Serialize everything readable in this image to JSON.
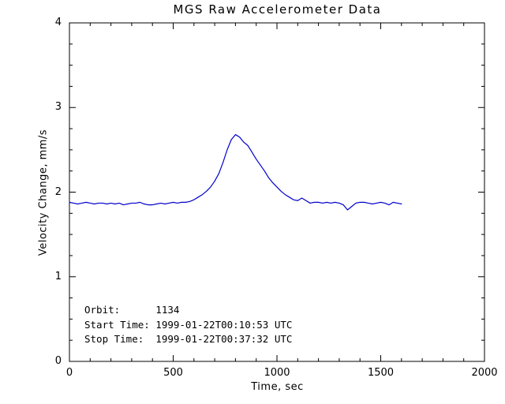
{
  "page": {
    "background": "#ffffff",
    "text_color": "#000000"
  },
  "chart_data": {
    "type": "line",
    "title": "MGS Raw Accelerometer Data",
    "xlabel": "Time, sec",
    "ylabel": "Velocity Change, mm/s",
    "xlim": [
      0,
      2000
    ],
    "ylim": [
      0,
      4
    ],
    "grid": false,
    "legend": false,
    "axis_color": "#000000",
    "line_color": "#0000CC",
    "x_ticks": [
      {
        "v": 0,
        "label": "0"
      },
      {
        "v": 500,
        "label": "500"
      },
      {
        "v": 1000,
        "label": "1000"
      },
      {
        "v": 1500,
        "label": "1500"
      },
      {
        "v": 2000,
        "label": "2000"
      }
    ],
    "y_ticks": [
      {
        "v": 0,
        "label": "0"
      },
      {
        "v": 1,
        "label": "1"
      },
      {
        "v": 2,
        "label": "2"
      },
      {
        "v": 3,
        "label": "3"
      },
      {
        "v": 4,
        "label": "4"
      }
    ],
    "x_minor_step": 100,
    "y_minor_step": 0.25,
    "series": [
      {
        "name": "velocity-change",
        "x": [
          0,
          20,
          40,
          60,
          80,
          100,
          120,
          140,
          160,
          180,
          200,
          220,
          240,
          260,
          280,
          300,
          320,
          340,
          360,
          380,
          400,
          420,
          440,
          460,
          480,
          500,
          520,
          540,
          560,
          580,
          600,
          620,
          640,
          660,
          680,
          700,
          720,
          740,
          760,
          780,
          800,
          820,
          840,
          860,
          880,
          900,
          920,
          940,
          960,
          980,
          1000,
          1020,
          1040,
          1060,
          1080,
          1100,
          1120,
          1140,
          1160,
          1180,
          1200,
          1220,
          1240,
          1260,
          1280,
          1300,
          1320,
          1340,
          1360,
          1380,
          1400,
          1420,
          1440,
          1460,
          1480,
          1500,
          1520,
          1540,
          1560,
          1580,
          1600
        ],
        "y": [
          1.88,
          1.87,
          1.86,
          1.87,
          1.88,
          1.87,
          1.86,
          1.87,
          1.87,
          1.86,
          1.87,
          1.86,
          1.87,
          1.85,
          1.86,
          1.87,
          1.87,
          1.88,
          1.86,
          1.85,
          1.85,
          1.86,
          1.87,
          1.86,
          1.87,
          1.88,
          1.87,
          1.88,
          1.88,
          1.89,
          1.91,
          1.94,
          1.97,
          2.01,
          2.06,
          2.13,
          2.22,
          2.35,
          2.5,
          2.62,
          2.68,
          2.65,
          2.59,
          2.55,
          2.47,
          2.39,
          2.32,
          2.25,
          2.17,
          2.11,
          2.06,
          2.01,
          1.97,
          1.94,
          1.91,
          1.9,
          1.93,
          1.9,
          1.87,
          1.88,
          1.88,
          1.87,
          1.88,
          1.87,
          1.88,
          1.87,
          1.85,
          1.79,
          1.83,
          1.87,
          1.88,
          1.88,
          1.87,
          1.86,
          1.87,
          1.88,
          1.87,
          1.85,
          1.88,
          1.87,
          1.86
        ]
      }
    ],
    "annotations": [
      "Orbit:      1134",
      "Start Time: 1999-01-22T00:10:53 UTC",
      "Stop Time:  1999-01-22T00:37:32 UTC"
    ]
  }
}
